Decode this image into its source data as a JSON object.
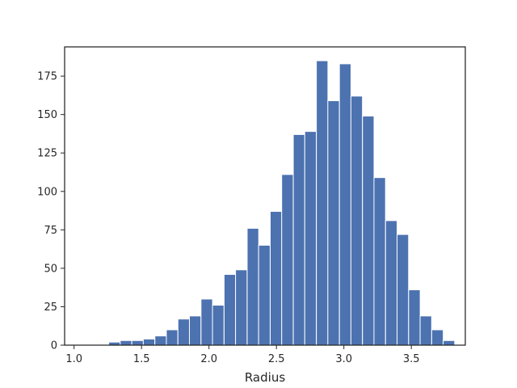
{
  "chart_data": {
    "type": "bar",
    "xlabel": "Radius",
    "ylabel": "",
    "title": "",
    "bar_color": "#4c72b0",
    "xlim": [
      0.93,
      3.9
    ],
    "ylim": [
      0,
      194
    ],
    "bin_width": 0.0855,
    "bins": [
      {
        "x": 1.0,
        "y": 0
      },
      {
        "x": 1.086,
        "y": 0
      },
      {
        "x": 1.171,
        "y": 0
      },
      {
        "x": 1.257,
        "y": 2
      },
      {
        "x": 1.342,
        "y": 3
      },
      {
        "x": 1.428,
        "y": 3
      },
      {
        "x": 1.513,
        "y": 4
      },
      {
        "x": 1.599,
        "y": 6
      },
      {
        "x": 1.684,
        "y": 10
      },
      {
        "x": 1.77,
        "y": 17
      },
      {
        "x": 1.855,
        "y": 19
      },
      {
        "x": 1.941,
        "y": 30
      },
      {
        "x": 2.026,
        "y": 26
      },
      {
        "x": 2.112,
        "y": 46
      },
      {
        "x": 2.197,
        "y": 49
      },
      {
        "x": 2.283,
        "y": 76
      },
      {
        "x": 2.368,
        "y": 65
      },
      {
        "x": 2.454,
        "y": 87
      },
      {
        "x": 2.539,
        "y": 111
      },
      {
        "x": 2.625,
        "y": 137
      },
      {
        "x": 2.71,
        "y": 139
      },
      {
        "x": 2.796,
        "y": 185
      },
      {
        "x": 2.881,
        "y": 159
      },
      {
        "x": 2.967,
        "y": 183
      },
      {
        "x": 3.052,
        "y": 162
      },
      {
        "x": 3.138,
        "y": 149
      },
      {
        "x": 3.223,
        "y": 109
      },
      {
        "x": 3.309,
        "y": 81
      },
      {
        "x": 3.394,
        "y": 72
      },
      {
        "x": 3.48,
        "y": 36
      },
      {
        "x": 3.565,
        "y": 19
      },
      {
        "x": 3.651,
        "y": 10
      },
      {
        "x": 3.736,
        "y": 3
      }
    ],
    "x_ticks": [
      {
        "value": 1.0,
        "label": "1.0"
      },
      {
        "value": 1.5,
        "label": "1.5"
      },
      {
        "value": 2.0,
        "label": "2.0"
      },
      {
        "value": 2.5,
        "label": "2.5"
      },
      {
        "value": 3.0,
        "label": "3.0"
      },
      {
        "value": 3.5,
        "label": "3.5"
      }
    ],
    "y_ticks": [
      {
        "value": 0,
        "label": "0"
      },
      {
        "value": 25,
        "label": "25"
      },
      {
        "value": 50,
        "label": "50"
      },
      {
        "value": 75,
        "label": "75"
      },
      {
        "value": 100,
        "label": "100"
      },
      {
        "value": 125,
        "label": "125"
      },
      {
        "value": 150,
        "label": "150"
      },
      {
        "value": 175,
        "label": "175"
      }
    ],
    "grid": false,
    "legend": "none"
  }
}
